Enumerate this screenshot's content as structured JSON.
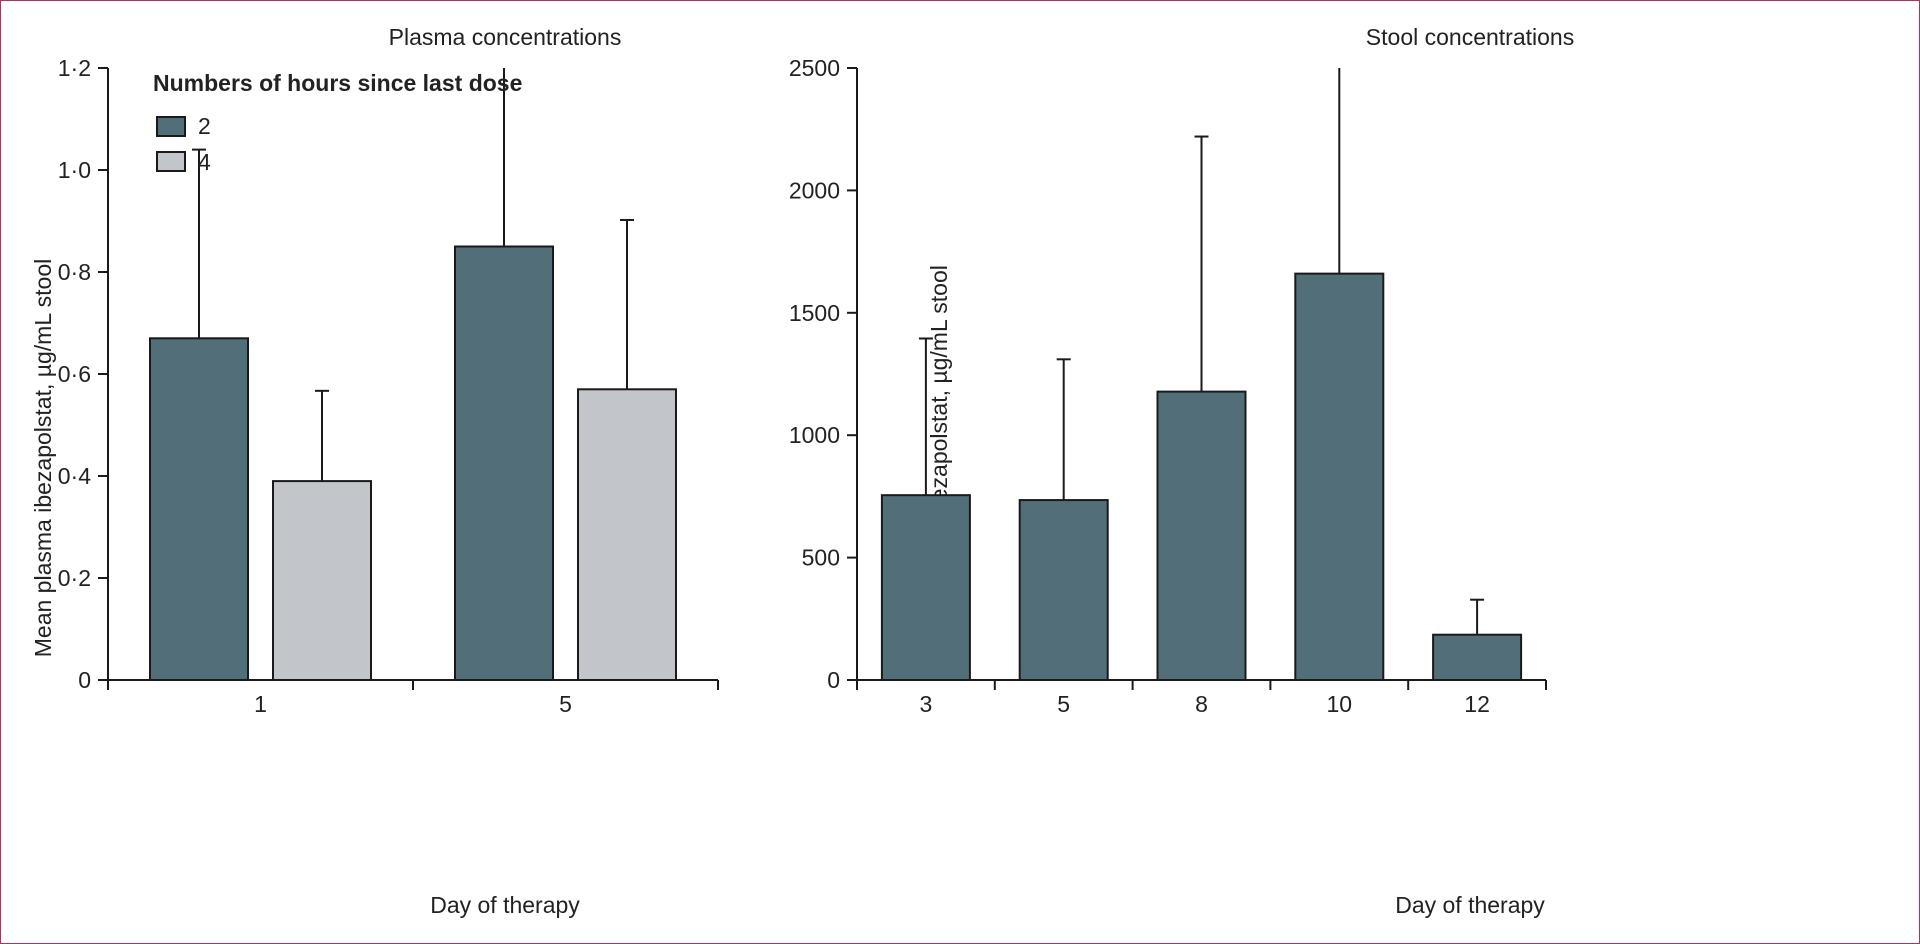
{
  "colors": {
    "series_2h": "#526e78",
    "series_4h": "#c2c6cb",
    "stool_bar": "#526e78",
    "frame": "#b03060"
  },
  "chart_data": [
    {
      "type": "bar",
      "title": "Plasma concentrations",
      "xlabel": "Day of therapy",
      "ylabel": "Mean plasma ibezapolstat, µg/mL stool",
      "categories": [
        "1",
        "5"
      ],
      "series": [
        {
          "name": "2",
          "values": [
            0.67,
            0.85
          ],
          "error_upper": [
            1.04,
            1.2
          ]
        },
        {
          "name": "4",
          "values": [
            0.39,
            0.57
          ],
          "error_upper": [
            0.567,
            0.902
          ]
        }
      ],
      "legend_title": "Numbers of hours since last dose",
      "legend_position": "top-left",
      "ylim": [
        0,
        1.2
      ],
      "yticks": [
        0,
        0.2,
        0.4,
        0.6,
        0.8,
        1.0,
        1.2
      ],
      "ytick_labels": [
        "0",
        "0·2",
        "0·4",
        "0·6",
        "0·8",
        "1·0",
        "1·2"
      ],
      "grid": false
    },
    {
      "type": "bar",
      "title": "Stool concentrations",
      "xlabel": "Day of therapy",
      "ylabel": "Mean faecal ibezapolstat, µg/mL stool",
      "categories": [
        "3",
        "5",
        "8",
        "10",
        "12"
      ],
      "series": [
        {
          "name": "stool",
          "values": [
            755,
            735,
            1178,
            1660,
            185
          ],
          "error_upper": [
            1395,
            1310,
            2220,
            2500,
            328
          ]
        }
      ],
      "ylim": [
        0,
        2500
      ],
      "yticks": [
        0,
        500,
        1000,
        1500,
        2000,
        2500
      ],
      "ytick_labels": [
        "0",
        "500",
        "1000",
        "1500",
        "2000",
        "2500"
      ],
      "grid": false
    }
  ]
}
